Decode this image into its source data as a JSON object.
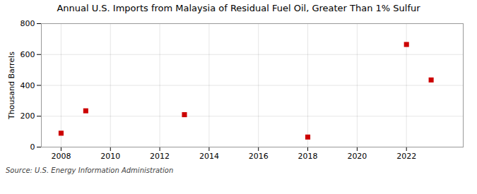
{
  "chart_data": {
    "type": "scatter",
    "title": "Annual U.S. Imports from Malaysia of Residual Fuel Oil, Greater Than 1% Sulfur",
    "ylabel": "Thousand Barrels",
    "source": "Source: U.S. Energy Information Administration",
    "x": [
      2008,
      2009,
      2013,
      2018,
      2022,
      2023
    ],
    "values": [
      90,
      235,
      210,
      65,
      665,
      435
    ],
    "color": "#cc0000",
    "marker": "square",
    "xlim": [
      2007.2,
      2024.3
    ],
    "xticks": [
      2008,
      2010,
      2012,
      2014,
      2016,
      2018,
      2020,
      2022
    ],
    "ylim": [
      0,
      800
    ],
    "yticks": [
      0,
      200,
      400,
      600,
      800
    ],
    "grid": true
  }
}
